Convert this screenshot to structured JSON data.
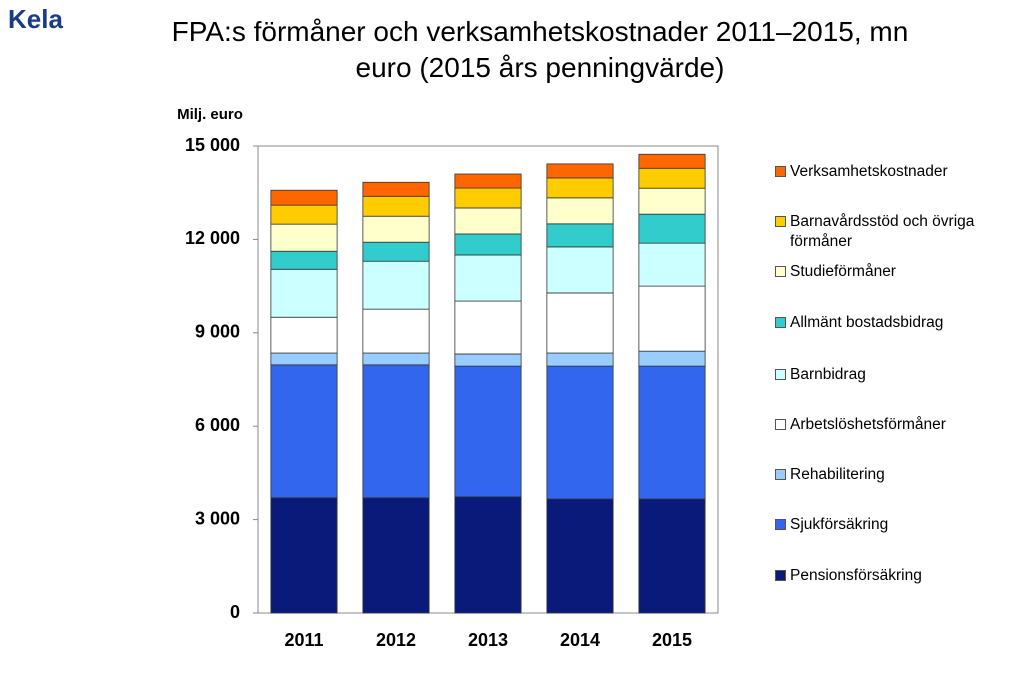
{
  "logo": "Kela",
  "chart_data": {
    "type": "stacked-bar",
    "title": "FPA:s förmåner och verksamhetskostnader 2011–2015, mn euro (2015 års penningvärde)",
    "y_label": "Milj. euro",
    "categories": [
      "2011",
      "2012",
      "2013",
      "2014",
      "2015"
    ],
    "ylim": [
      0,
      15000
    ],
    "yticks": [
      0,
      {
        "value": 3000,
        "label": "3 000"
      },
      {
        "value": 6000,
        "label": "6 000"
      },
      {
        "value": 9000,
        "label": "9 000"
      },
      {
        "value": 12000,
        "label": "12 000"
      },
      {
        "value": 15000,
        "label": "15 000"
      }
    ],
    "grid": false,
    "legend": "right",
    "series": [
      {
        "name": "Pensionsförsäkring",
        "color": "#0a1a7a",
        "values": [
          3700,
          3700,
          3730,
          3660,
          3660
        ]
      },
      {
        "name": "Sjukförsäkring",
        "color": "#3366ee",
        "values": [
          4270,
          4270,
          4200,
          4270,
          4270
        ]
      },
      {
        "name": "Rehabilitering",
        "color": "#99ccff",
        "values": [
          380,
          380,
          390,
          420,
          480
        ]
      },
      {
        "name": "Arbetslöshetsförmåner",
        "color": "#ffffff",
        "values": [
          1150,
          1410,
          1700,
          1930,
          2090
        ]
      },
      {
        "name": "Barnbidrag",
        "color": "#ccffff",
        "values": [
          1540,
          1540,
          1480,
          1480,
          1380
        ]
      },
      {
        "name": "Allmänt bostadsbidrag",
        "color": "#33cccc",
        "values": [
          580,
          610,
          675,
          740,
          930
        ]
      },
      {
        "name": "Studieförmåner",
        "color": "#ffffcc",
        "values": [
          870,
          835,
          835,
          835,
          835
        ]
      },
      {
        "name": "Barnavårdsstöd och övriga förmåner",
        "color": "#ffcc00",
        "values": [
          610,
          640,
          640,
          640,
          640
        ]
      },
      {
        "name": "Verksamhetskostnader",
        "color": "#ff6600",
        "values": [
          480,
          450,
          450,
          450,
          450
        ]
      }
    ]
  }
}
